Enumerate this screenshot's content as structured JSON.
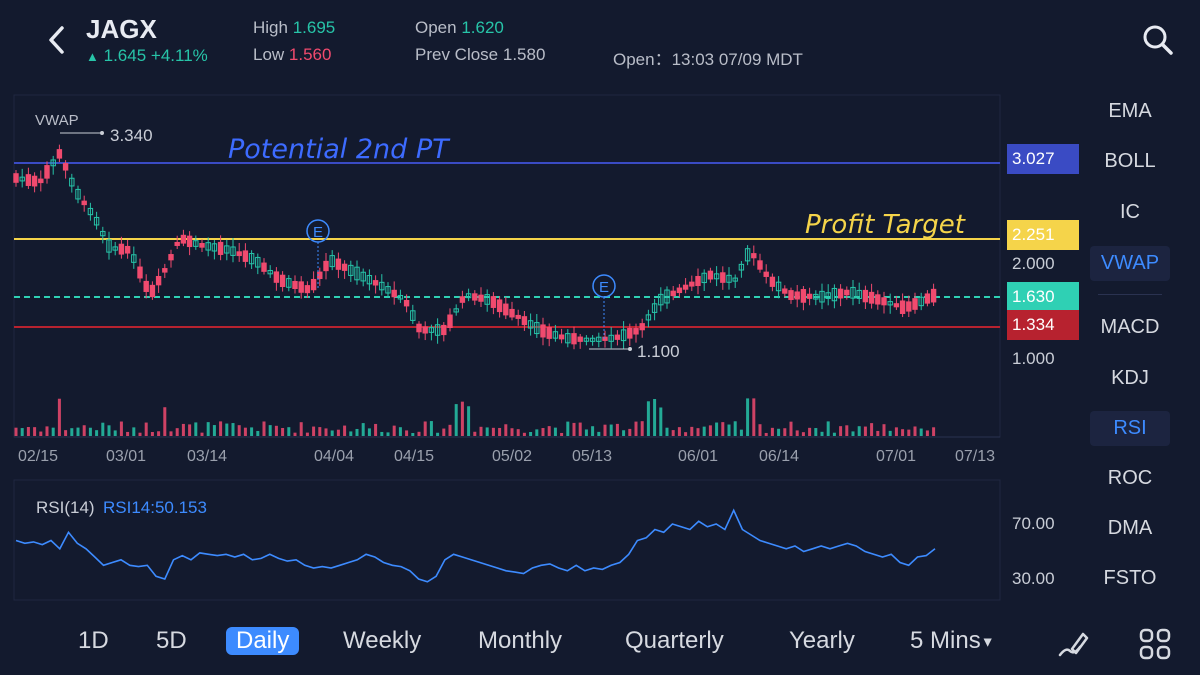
{
  "header": {
    "ticker": "JAGX",
    "price": "1.645",
    "change": "+4.11%",
    "high_label": "High",
    "high_value": "1.695",
    "low_label": "Low",
    "low_value": "1.560",
    "open_label": "Open",
    "open_value": "1.620",
    "prev_close_label": "Prev Close",
    "prev_close_value": "1.580",
    "market_open": "Open：13:03 07/09 MDT"
  },
  "chart": {
    "vwap_label": "VWAP",
    "vwap_high": "3.340",
    "low_marker": "1.100",
    "annotation_pt2": "Potential 2nd PT",
    "annotation_profit": "Profit Target",
    "earnings_marker": "E",
    "price_tags": [
      {
        "value": "3.027",
        "color": "#3a4bc4"
      },
      {
        "value": "2.251",
        "color": "#f5d44a"
      },
      {
        "value": "2.000",
        "color": ""
      },
      {
        "value": "1.630",
        "color": "#2fd0b4"
      },
      {
        "value": "1.334",
        "color": "#b7222f"
      },
      {
        "value": "1.000",
        "color": ""
      }
    ],
    "dates": [
      "02/15",
      "03/01",
      "03/14",
      "04/04",
      "04/15",
      "05/02",
      "05/13",
      "06/01",
      "06/14",
      "07/01",
      "07/13"
    ]
  },
  "rsi": {
    "label": "RSI(14)",
    "value_label": "RSI14:50.153",
    "level_high": "70.00",
    "level_low": "30.00",
    "series": [
      58,
      56,
      57,
      55,
      58,
      52,
      64,
      56,
      52,
      46,
      40,
      42,
      44,
      40,
      39,
      40,
      32,
      30,
      44,
      47,
      44,
      49,
      48,
      47,
      48,
      46,
      48,
      44,
      45,
      48,
      45,
      43,
      44,
      40,
      38,
      39,
      38,
      40,
      42,
      44,
      48,
      46,
      42,
      40,
      39,
      36,
      30,
      28,
      32,
      44,
      48,
      46,
      44,
      42,
      40,
      38,
      36,
      35,
      34,
      38,
      40,
      41,
      38,
      36,
      40,
      36,
      38,
      37,
      40,
      42,
      48,
      58,
      60,
      66,
      64,
      70,
      68,
      66,
      72,
      68,
      70,
      66,
      80,
      66,
      62,
      58,
      56,
      54,
      52,
      54,
      50,
      52,
      54,
      52,
      54,
      56,
      54,
      50,
      48,
      46,
      48,
      42,
      40,
      46,
      47,
      52
    ]
  },
  "indicators": [
    "EMA",
    "BOLL",
    "IC",
    "VWAP",
    "MACD",
    "KDJ",
    "RSI",
    "ROC",
    "DMA",
    "FSTO"
  ],
  "active_indicators": [
    "VWAP",
    "RSI"
  ],
  "timeframes": [
    "1D",
    "5D",
    "Daily",
    "Weekly",
    "Monthly",
    "Quarterly",
    "Yearly",
    "5 Mins"
  ],
  "active_timeframe": "Daily",
  "icons": [
    "back-icon",
    "search-icon",
    "draw-icon",
    "grid-icon"
  ]
}
